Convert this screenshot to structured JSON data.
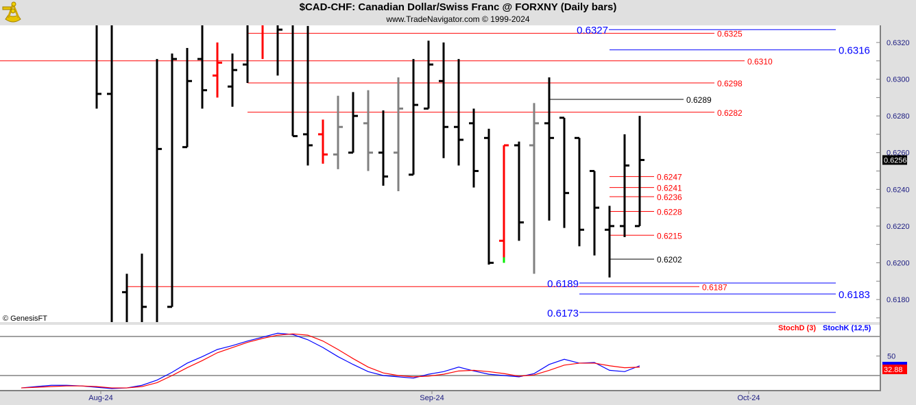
{
  "header": {
    "title": "$CAD-CHF:  Canadian Dollar/Swiss Franc @ FORXNY  (Daily bars)",
    "subtitle": "www.TradeNavigator.com © 1999-2024",
    "logo": "sextant-logo"
  },
  "copyright": "© GenesisFT",
  "colors": {
    "bar_black": "#000000",
    "bar_red": "#ff0000",
    "bar_gray": "#808080",
    "bar_green": "#00ee00",
    "stochK": "#0000ff",
    "stochD": "#ff0000",
    "axis_text": "#1a1a80"
  },
  "chart_data": [
    {
      "type": "ohlc",
      "title": "$CAD-CHF Daily bars",
      "ylim": [
        0.6168,
        0.633
      ],
      "y_ticks": [
        "0.6180",
        "0.6200",
        "0.6220",
        "0.6240",
        "0.6260",
        "0.6280",
        "0.6300",
        "0.6320"
      ],
      "x_ticks": [
        "Aug-24",
        "Sep-24",
        "Oct-24"
      ],
      "last_price": "0.6256",
      "bars_ohlc_color": [
        [
          null,
          0.634,
          0.6284,
          0.6292,
          "k"
        ],
        [
          0.6292,
          0.634,
          0.616,
          null,
          "k"
        ],
        [
          0.6184,
          0.6194,
          0.616,
          null,
          "k"
        ],
        [
          null,
          0.6205,
          0.616,
          0.6176,
          "k"
        ],
        [
          null,
          0.6311,
          0.616,
          0.6262,
          "k"
        ],
        [
          0.6176,
          0.6314,
          0.6176,
          0.6311,
          "k"
        ],
        [
          0.6263,
          0.6317,
          0.6263,
          0.6299,
          "k"
        ],
        [
          0.6311,
          0.634,
          0.6284,
          0.6294,
          "k"
        ],
        [
          0.6302,
          0.632,
          0.629,
          0.6309,
          "r"
        ],
        [
          0.6296,
          0.6314,
          0.6285,
          0.6305,
          "k"
        ],
        [
          0.6308,
          0.634,
          0.6298,
          null,
          "k"
        ],
        [
          null,
          0.634,
          0.6311,
          null,
          "r"
        ],
        [
          null,
          0.634,
          0.6302,
          0.6327,
          "k"
        ],
        [
          null,
          0.634,
          0.6269,
          0.6269,
          "k"
        ],
        [
          0.627,
          0.6329,
          0.6253,
          0.6264,
          "k"
        ],
        [
          0.627,
          0.6278,
          0.6254,
          0.6259,
          "r"
        ],
        [
          0.6259,
          0.6291,
          0.6251,
          0.6274,
          "g"
        ],
        [
          0.626,
          0.6293,
          0.626,
          0.628,
          "k"
        ],
        [
          0.6276,
          0.6294,
          0.625,
          0.626,
          "g"
        ],
        [
          0.626,
          0.6283,
          0.6242,
          0.6247,
          "k"
        ],
        [
          0.626,
          0.6301,
          0.6239,
          0.6284,
          "g"
        ],
        [
          0.6248,
          0.6311,
          0.6248,
          0.6286,
          "k"
        ],
        [
          0.6284,
          0.6321,
          0.6284,
          0.6308,
          "k"
        ],
        [
          0.6299,
          0.632,
          0.6257,
          0.6274,
          "k"
        ],
        [
          0.6274,
          0.6311,
          0.6253,
          0.6267,
          "k"
        ],
        [
          0.6276,
          0.6284,
          0.6241,
          0.625,
          "k"
        ],
        [
          0.6268,
          0.6273,
          0.6199,
          0.62,
          "k"
        ],
        [
          0.6212,
          0.6264,
          0.62,
          0.6264,
          "r"
        ],
        [
          0.6264,
          0.6266,
          0.6212,
          0.6222,
          "k"
        ],
        [
          0.6264,
          0.6287,
          0.6194,
          0.6276,
          "g"
        ],
        [
          0.6276,
          0.6301,
          0.6223,
          0.6268,
          "k"
        ],
        [
          0.6279,
          0.6279,
          0.6219,
          0.6238,
          "k"
        ],
        [
          0.6268,
          0.6268,
          0.6209,
          0.6218,
          "k"
        ],
        [
          0.625,
          0.625,
          0.6204,
          0.623,
          "k"
        ],
        [
          0.6218,
          0.6231,
          0.6192,
          0.622,
          "k"
        ],
        [
          0.622,
          0.627,
          0.6214,
          0.6253,
          "k"
        ],
        [
          0.622,
          0.628,
          0.622,
          0.6256,
          "k"
        ]
      ],
      "levels": [
        {
          "label": "0.6327",
          "price": 0.6327,
          "color": "#0000ff"
        },
        {
          "label": "0.6325",
          "price": 0.6325,
          "color": "#ff0000"
        },
        {
          "label": "0.6316",
          "price": 0.6316,
          "color": "#0000ff"
        },
        {
          "label": "0.6310",
          "price": 0.631,
          "color": "#ff0000"
        },
        {
          "label": "0.6298",
          "price": 0.6298,
          "color": "#ff0000"
        },
        {
          "label": "0.6289",
          "price": 0.6289,
          "color": "#000000"
        },
        {
          "label": "0.6282",
          "price": 0.6282,
          "color": "#ff0000"
        },
        {
          "label": "0.6247",
          "price": 0.6247,
          "color": "#ff0000"
        },
        {
          "label": "0.6241",
          "price": 0.6241,
          "color": "#ff0000"
        },
        {
          "label": "0.6236",
          "price": 0.6236,
          "color": "#ff0000"
        },
        {
          "label": "0.6228",
          "price": 0.6228,
          "color": "#ff0000"
        },
        {
          "label": "0.6215",
          "price": 0.6215,
          "color": "#ff0000"
        },
        {
          "label": "0.6202",
          "price": 0.6202,
          "color": "#000000"
        },
        {
          "label": "0.6189",
          "price": 0.6189,
          "color": "#0000ff"
        },
        {
          "label": "0.6187",
          "price": 0.6187,
          "color": "#ff0000"
        },
        {
          "label": "0.6183",
          "price": 0.6183,
          "color": "#0000ff"
        },
        {
          "label": "0.6173",
          "price": 0.6173,
          "color": "#0000ff"
        }
      ]
    },
    {
      "type": "line",
      "title": "Stochastic",
      "ylim": [
        0,
        100
      ],
      "y_ticks": [
        "50"
      ],
      "reference_lines": [
        20,
        80
      ],
      "legend": [
        "StochD (3)",
        "StochK (12,5)"
      ],
      "legend_position": "top-right",
      "last_value": "32.88",
      "series": [
        {
          "name": "StochK (12,5)",
          "values": [
            1,
            3,
            5,
            5,
            4,
            2,
            0,
            1,
            5,
            13,
            25,
            39,
            49,
            60,
            66,
            73,
            79,
            85,
            83,
            75,
            63,
            49,
            37,
            26,
            20,
            18,
            16,
            22,
            26,
            33,
            27,
            22,
            20,
            18,
            23,
            37,
            45,
            39,
            40,
            28,
            26,
            35
          ]
        },
        {
          "name": "StochD (3)",
          "values": [
            1,
            2,
            3,
            4,
            4,
            3,
            1,
            1,
            3,
            9,
            20,
            32,
            43,
            55,
            63,
            71,
            77,
            82,
            84,
            82,
            73,
            60,
            46,
            33,
            24,
            20,
            18,
            19,
            22,
            27,
            28,
            26,
            23,
            19,
            21,
            28,
            36,
            39,
            39,
            35,
            32,
            32.88
          ]
        }
      ]
    }
  ]
}
